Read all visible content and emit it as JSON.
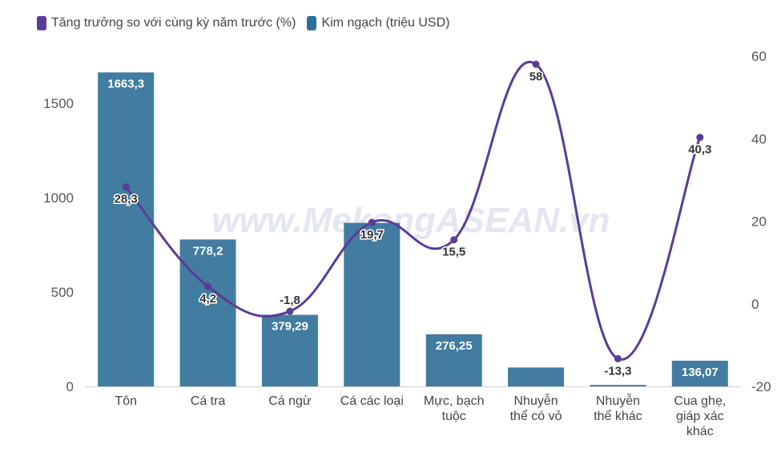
{
  "chart_data": {
    "type": "bar+line",
    "categories": [
      "Tôn",
      "Cá tra",
      "Cá ngừ",
      "Cá các loại",
      "Mực, bạch tuộc",
      "Nhuyễn thể có vỏ",
      "Nhuyễn thể khác",
      "Cua ghẹ, giáp xác khác"
    ],
    "category_lines": [
      [
        "Tôn"
      ],
      [
        "Cá tra"
      ],
      [
        "Cá ngừ"
      ],
      [
        "Cá các loại"
      ],
      [
        "Mực, bạch",
        "tuộc"
      ],
      [
        "Nhuyễn",
        "thể có vỏ"
      ],
      [
        "Nhuyễn",
        "thể khác"
      ],
      [
        "Cua ghẹ,",
        "giáp xác",
        "khác"
      ]
    ],
    "series": [
      {
        "name": "Kim ngạch (triệu USD)",
        "kind": "bar",
        "axis": "left",
        "color": "#2e6e96",
        "values": [
          1663.3,
          778.2,
          379.29,
          866,
          276.25,
          100,
          8,
          136.07
        ],
        "labels": [
          "1663,3",
          "778,2",
          "379,29",
          "",
          "276,25",
          "",
          "",
          "136,07"
        ]
      },
      {
        "name": "Tăng trưởng so với cùng kỳ năm trước (%)",
        "kind": "line",
        "axis": "right",
        "color": "#5b3c96",
        "values": [
          28.3,
          4.2,
          -1.8,
          19.7,
          15.5,
          58,
          -13.3,
          40.3
        ],
        "labels": [
          "28,3",
          "4,2",
          "-1,8",
          "19,7",
          "15,5",
          "58",
          "-13,3",
          "40,3"
        ]
      }
    ],
    "left_axis": {
      "ylim": [
        0,
        1750
      ],
      "ticks": [
        0,
        500,
        1000,
        1500
      ]
    },
    "right_axis": {
      "ylim": [
        -20,
        60
      ],
      "ticks": [
        -20,
        0,
        20,
        40,
        60
      ]
    },
    "legend_position": "top-left",
    "watermark": "www.MekongASEAN.vn"
  }
}
